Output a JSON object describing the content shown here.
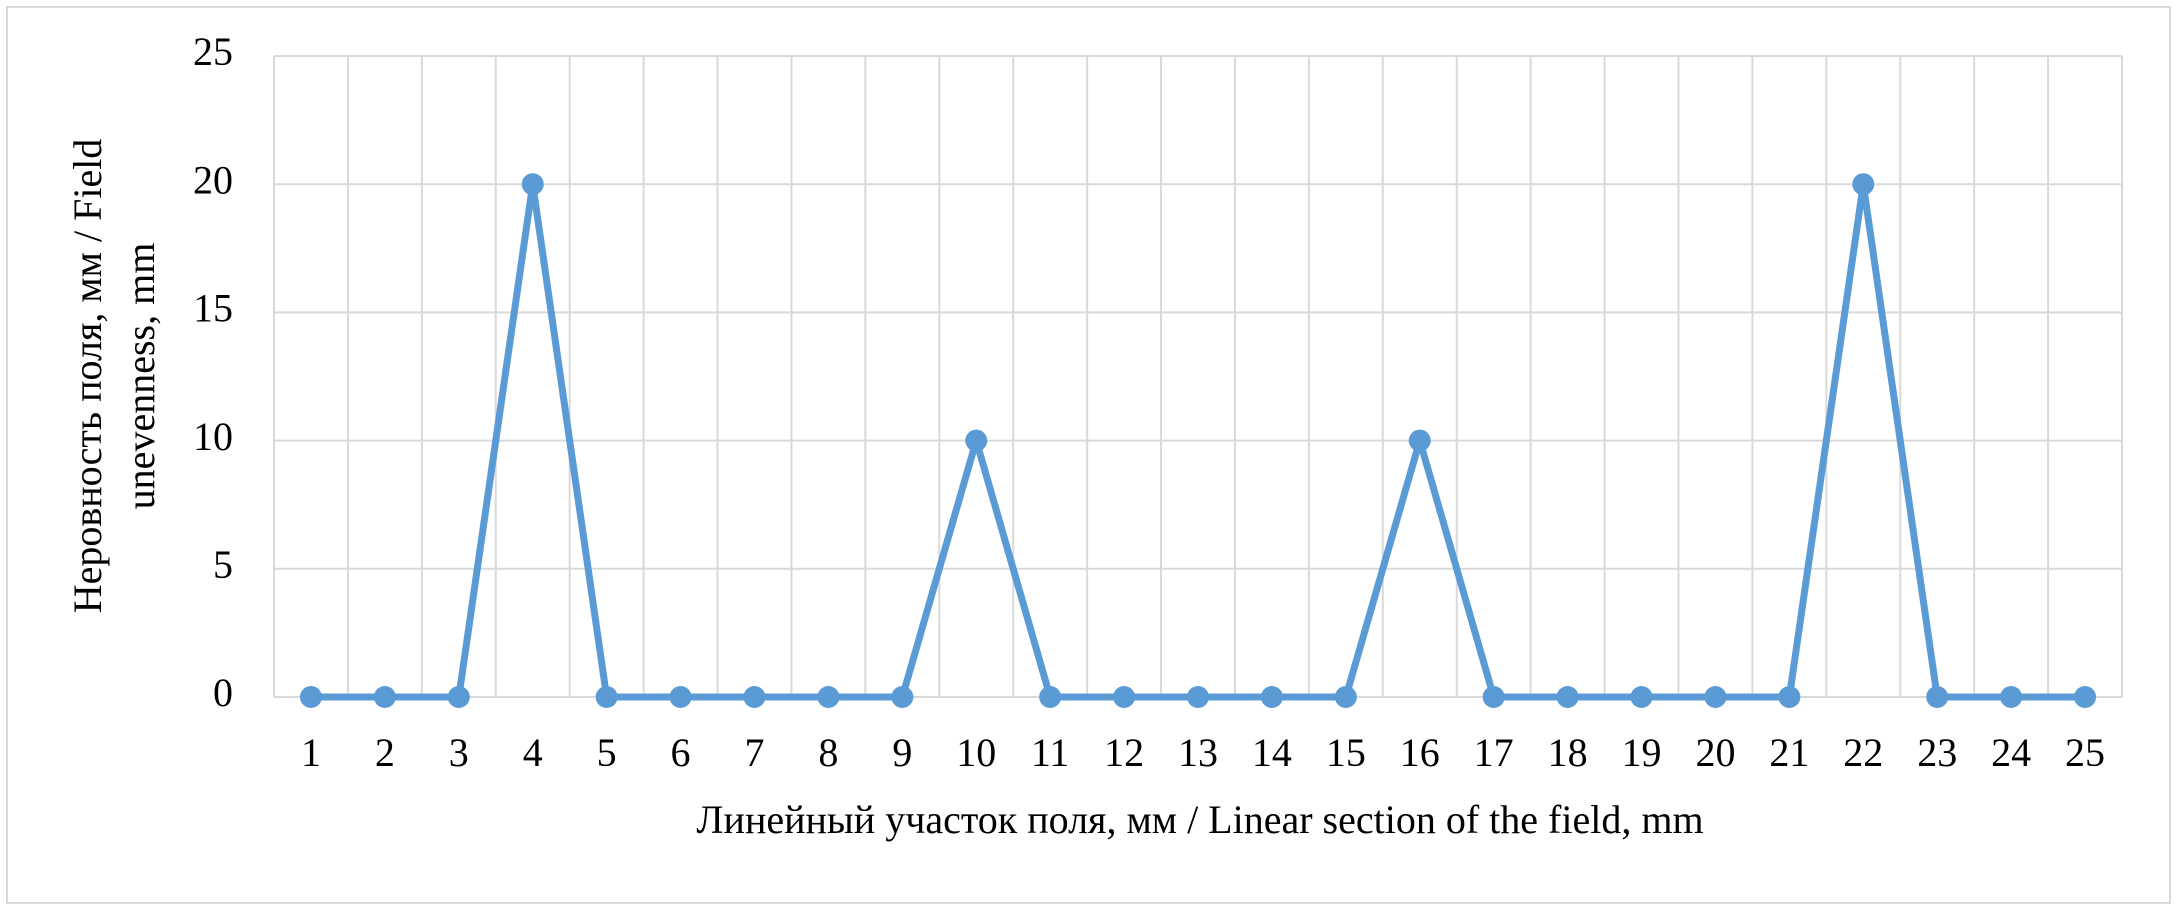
{
  "chart_data": {
    "type": "line",
    "ylabel_lines": [
      "Неровность поля, мм / Field",
      "unevenness, mm"
    ],
    "xlabel": "Линейный участок поля, мм / Linear section of the field, mm",
    "categories": [
      "1",
      "2",
      "3",
      "4",
      "5",
      "6",
      "7",
      "8",
      "9",
      "10",
      "11",
      "12",
      "13",
      "14",
      "15",
      "16",
      "17",
      "18",
      "19",
      "20",
      "21",
      "22",
      "23",
      "24",
      "25"
    ],
    "values": [
      0,
      0,
      0,
      20,
      0,
      0,
      0,
      0,
      0,
      10,
      0,
      0,
      0,
      0,
      0,
      10,
      0,
      0,
      0,
      0,
      0,
      20,
      0,
      0,
      0
    ],
    "color": "#5b9bd5",
    "ylim": [
      0,
      25
    ],
    "yticks": [
      0,
      5,
      10,
      15,
      20,
      25
    ],
    "grid": true
  }
}
